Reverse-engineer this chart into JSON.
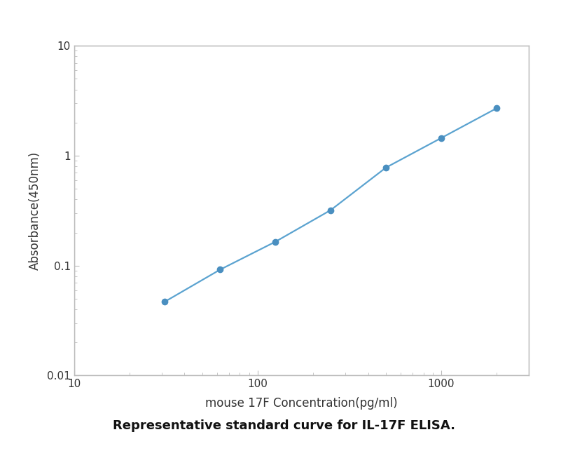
{
  "x": [
    31.25,
    62.5,
    125,
    250,
    500,
    1000,
    2000
  ],
  "y": [
    0.047,
    0.092,
    0.165,
    0.32,
    0.78,
    1.45,
    2.7
  ],
  "line_color": "#5ba3d0",
  "marker_color": "#4a8fc0",
  "marker_size": 6,
  "line_width": 1.6,
  "xlabel": "mouse 17F Concentration(pg/ml)",
  "ylabel": "Absorbance(450nm)",
  "xlim": [
    10,
    3000
  ],
  "ylim": [
    0.01,
    10
  ],
  "caption": "Representative standard curve for IL-17F ELISA.",
  "bg_color": "#ffffff",
  "plot_bg_color": "#ffffff",
  "spine_color": "#bbbbbb",
  "xlabel_fontsize": 12,
  "ylabel_fontsize": 12,
  "tick_fontsize": 11,
  "caption_fontsize": 13,
  "outer_box_color": "#cccccc"
}
